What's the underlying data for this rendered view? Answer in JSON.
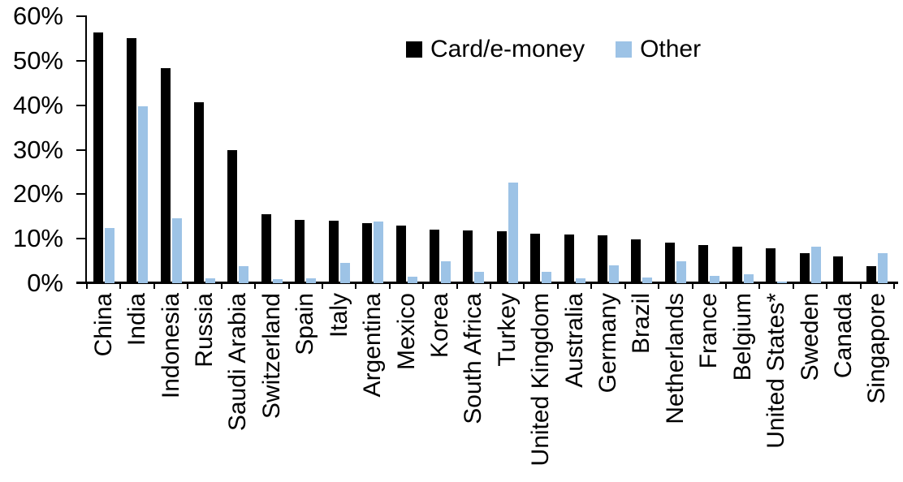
{
  "chart_data": {
    "type": "bar",
    "title": "",
    "xlabel": "",
    "ylabel": "",
    "ylim": [
      0,
      60
    ],
    "ytick_labels": [
      "60%",
      "50%",
      "40%",
      "30%",
      "20%",
      "10%",
      "0%"
    ],
    "grid": "off",
    "legend_position": "top-center",
    "categories": [
      "China",
      "India",
      "Indonesia",
      "Russia",
      "Saudi Arabia",
      "Switzerland",
      "Spain",
      "Italy",
      "Argentina",
      "Mexico",
      "Korea",
      "South Africa",
      "Turkey",
      "United Kingdom",
      "Australia",
      "Germany",
      "Brazil",
      "Netherlands",
      "France",
      "Belgium",
      "United States*",
      "Sweden",
      "Canada",
      "Singapore"
    ],
    "series": [
      {
        "name": "Card/e-money",
        "color": "#000000",
        "values": [
          56.3,
          55.1,
          48.4,
          40.6,
          29.9,
          15.6,
          14.3,
          14.1,
          13.5,
          13.0,
          12.1,
          11.8,
          11.6,
          11.2,
          11.0,
          10.7,
          9.9,
          9.2,
          8.6,
          8.2,
          7.9,
          6.7,
          6.1,
          3.8
        ]
      },
      {
        "name": "Other",
        "color": "#9DC3E6",
        "values": [
          12.4,
          39.8,
          14.6,
          1.1,
          3.9,
          1.0,
          1.1,
          4.6,
          13.9,
          1.4,
          4.9,
          2.5,
          22.7,
          2.5,
          1.1,
          4.0,
          1.2,
          5.0,
          1.7,
          2.1,
          0.3,
          8.2,
          0.0,
          6.7
        ]
      }
    ]
  }
}
